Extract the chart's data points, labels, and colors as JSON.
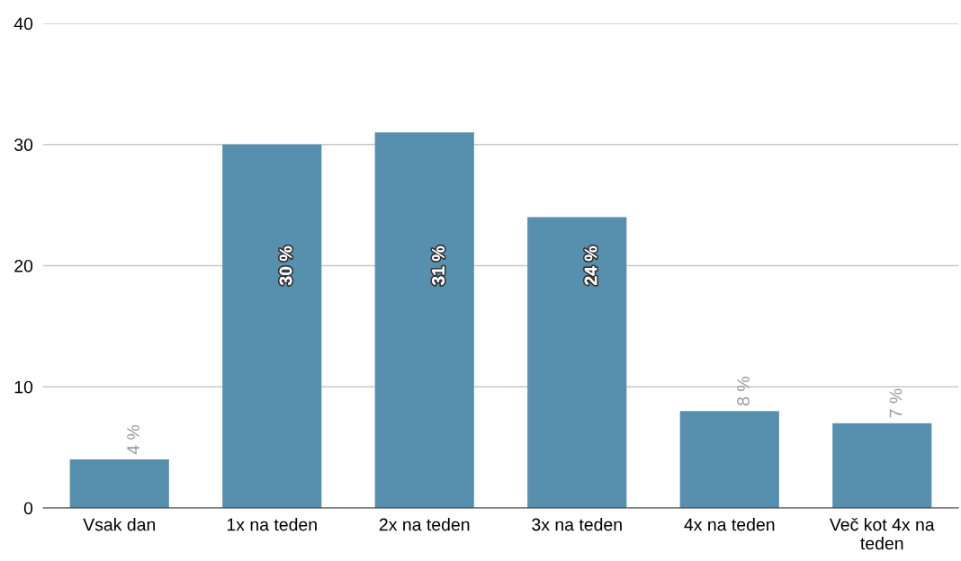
{
  "chart_data": {
    "type": "bar",
    "categories": [
      "Vsak dan",
      "1x na teden",
      "2x na teden",
      "3x na teden",
      "4x na teden",
      "Več kot 4x na teden"
    ],
    "values": [
      4,
      30,
      31,
      24,
      8,
      7
    ],
    "value_labels": [
      "4 %",
      "30 %",
      "31 %",
      "24 %",
      "8 %",
      "7 %"
    ],
    "color": "#5790ae",
    "ylim": [
      0,
      40
    ],
    "yticks": [
      0,
      10,
      20,
      30,
      40
    ],
    "grid": "y",
    "legend": false
  }
}
